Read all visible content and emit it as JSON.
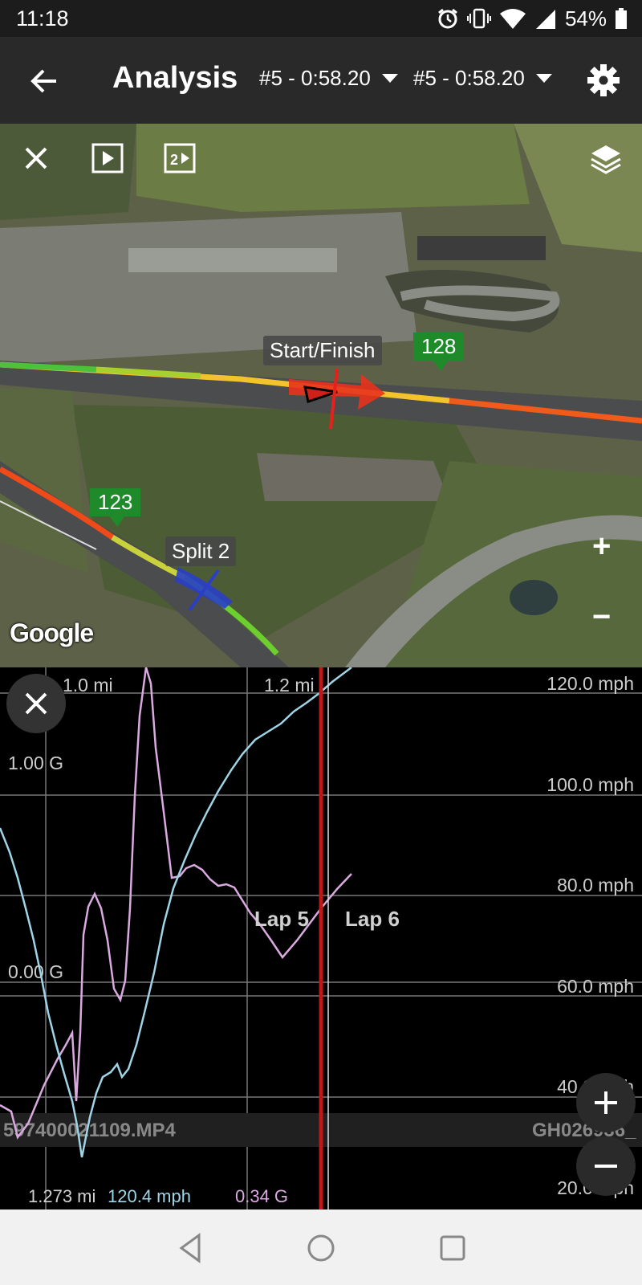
{
  "status_bar": {
    "time": "11:18",
    "battery": "54%"
  },
  "header": {
    "title": "Analysis",
    "lap_a": "#5 - 0:58.20",
    "lap_b": "#5 - 0:58.20"
  },
  "map": {
    "start_finish_label": "Start/Finish",
    "split_label": "Split 2",
    "marker_a": "128",
    "marker_b": "123",
    "zoom_in": "+",
    "zoom_out": "−",
    "attribution": "Google"
  },
  "chart": {
    "dist_labels": [
      "1.0 mi",
      "1.2 mi"
    ],
    "speed_labels": [
      "120.0 mph",
      "100.0 mph",
      "80.0 mph",
      "60.0 mph",
      "40.0 mph",
      "20.0 mph"
    ],
    "g_labels": [
      "1.00 G",
      "0.00 G"
    ],
    "lap_labels": [
      "Lap 5",
      "Lap 6"
    ],
    "video_left": "597400021109.MP4",
    "video_right": "GH026936_",
    "readout_distance": "1.273 mi",
    "readout_speed": "120.4 mph",
    "readout_g": "0.34 G",
    "zoom_in": "+",
    "zoom_out": "−"
  },
  "colors": {
    "speed_line": "#9fd3e6",
    "g_line": "#d9a9e0",
    "cursor": "#c01818",
    "marker": "#1f8a2a"
  }
}
